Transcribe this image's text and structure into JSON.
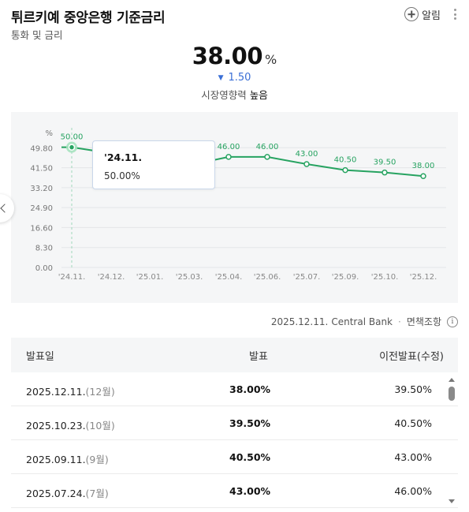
{
  "header": {
    "title": "튀르키예 중앙은행 기준금리",
    "subtitle": "통화 및 금리",
    "alarm_label": "알림"
  },
  "rate": {
    "value": "38.00",
    "unit": "%",
    "change": "1.50",
    "change_direction": "down",
    "impact_label": "시장영향력",
    "impact_value": "높음"
  },
  "tooltip": {
    "date": "'24.11.",
    "value": "50.00%"
  },
  "chart_data": {
    "type": "line",
    "unit_label": "%",
    "x_ticks": [
      "'24.11.",
      "'24.12.",
      "'25.01.",
      "'25.03.",
      "'25.04.",
      "'25.06.",
      "'25.07.",
      "'25.09.",
      "'25.10.",
      "'25.12."
    ],
    "y_ticks": [
      "0.00",
      "8.30",
      "16.60",
      "24.90",
      "33.20",
      "41.50",
      "49.80"
    ],
    "ylim": [
      0,
      58.1
    ],
    "series": [
      {
        "x": [
          "'24.11.",
          "'24.12.",
          "'25.01.",
          "'25.03.",
          "'25.04.",
          "'25.06.",
          "'25.07.",
          "'25.09.",
          "'25.10.",
          "'25.12."
        ],
        "values": [
          50.0,
          47.5,
          45.0,
          42.5,
          46.0,
          46.0,
          43.0,
          40.5,
          39.5,
          38.0
        ],
        "labels": [
          "50.00",
          null,
          null,
          null,
          "46.00",
          "46.00",
          "43.00",
          "40.50",
          "39.50",
          "38.00"
        ]
      }
    ],
    "highlight_index": 0,
    "line_color": "#27a361",
    "grid": true
  },
  "source": {
    "date": "2025.12.11.",
    "name": "Central Bank",
    "disclaimer": "면책조항"
  },
  "table": {
    "headers": [
      "발표일",
      "발표",
      "이전발표(수정)"
    ],
    "rows": [
      {
        "date": "2025.12.11.",
        "month": "(12월)",
        "value": "38.00%",
        "prev": "39.50%"
      },
      {
        "date": "2025.10.23.",
        "month": "(10월)",
        "value": "39.50%",
        "prev": "40.50%"
      },
      {
        "date": "2025.09.11.",
        "month": "(9월)",
        "value": "40.50%",
        "prev": "43.00%"
      },
      {
        "date": "2025.07.24.",
        "month": "(7월)",
        "value": "43.00%",
        "prev": "46.00%"
      }
    ]
  },
  "colors": {
    "accent_green": "#27a361",
    "down_blue": "#3b6fd6"
  }
}
